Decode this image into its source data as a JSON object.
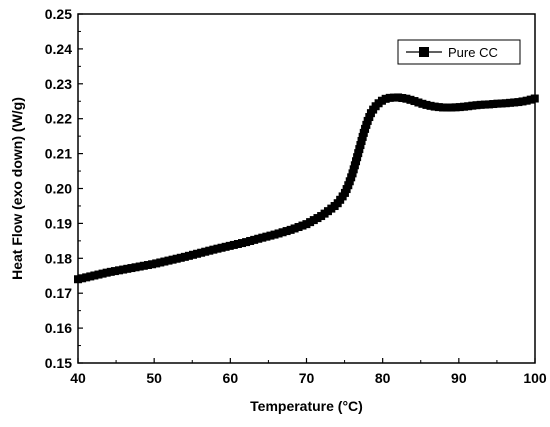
{
  "chart_data": {
    "type": "line",
    "xlabel": "Temperature (°C)",
    "ylabel": "Heat Flow (exo down) (W/g)",
    "xlim": [
      40,
      100
    ],
    "ylim": [
      0.15,
      0.25
    ],
    "xticks": [
      40,
      50,
      60,
      70,
      80,
      90,
      100
    ],
    "yticks": [
      0.15,
      0.16,
      0.17,
      0.18,
      0.19,
      0.2,
      0.21,
      0.22,
      0.23,
      0.24,
      0.25
    ],
    "grid": false,
    "legend": {
      "position": "top-right",
      "marker": "square"
    },
    "series": [
      {
        "name": "Pure CC",
        "color": "#000000",
        "marker": "square",
        "points": [
          [
            40,
            0.174
          ],
          [
            42,
            0.175
          ],
          [
            44,
            0.176
          ],
          [
            46,
            0.1768
          ],
          [
            48,
            0.1776
          ],
          [
            50,
            0.1784
          ],
          [
            52,
            0.1794
          ],
          [
            54,
            0.1804
          ],
          [
            56,
            0.1815
          ],
          [
            58,
            0.1826
          ],
          [
            60,
            0.1836
          ],
          [
            62,
            0.1846
          ],
          [
            64,
            0.1858
          ],
          [
            66,
            0.1869
          ],
          [
            68,
            0.1882
          ],
          [
            70,
            0.1898
          ],
          [
            72,
            0.1922
          ],
          [
            73,
            0.1938
          ],
          [
            74,
            0.1955
          ],
          [
            75,
            0.1985
          ],
          [
            75.5,
            0.201
          ],
          [
            76,
            0.204
          ],
          [
            76.5,
            0.2078
          ],
          [
            77,
            0.2118
          ],
          [
            77.5,
            0.2158
          ],
          [
            78,
            0.2192
          ],
          [
            78.5,
            0.2218
          ],
          [
            79,
            0.2234
          ],
          [
            79.5,
            0.2245
          ],
          [
            80,
            0.2253
          ],
          [
            80.5,
            0.2258
          ],
          [
            81,
            0.226
          ],
          [
            82,
            0.2261
          ],
          [
            83,
            0.2258
          ],
          [
            84,
            0.2252
          ],
          [
            85,
            0.2244
          ],
          [
            86,
            0.2238
          ],
          [
            87,
            0.2234
          ],
          [
            88,
            0.2232
          ],
          [
            89,
            0.2232
          ],
          [
            90,
            0.2233
          ],
          [
            91,
            0.2235
          ],
          [
            92,
            0.2238
          ],
          [
            93,
            0.224
          ],
          [
            94,
            0.2241
          ],
          [
            95,
            0.2243
          ],
          [
            96,
            0.2244
          ],
          [
            97,
            0.2246
          ],
          [
            98,
            0.2248
          ],
          [
            99,
            0.2252
          ],
          [
            100,
            0.2258
          ]
        ]
      }
    ]
  }
}
